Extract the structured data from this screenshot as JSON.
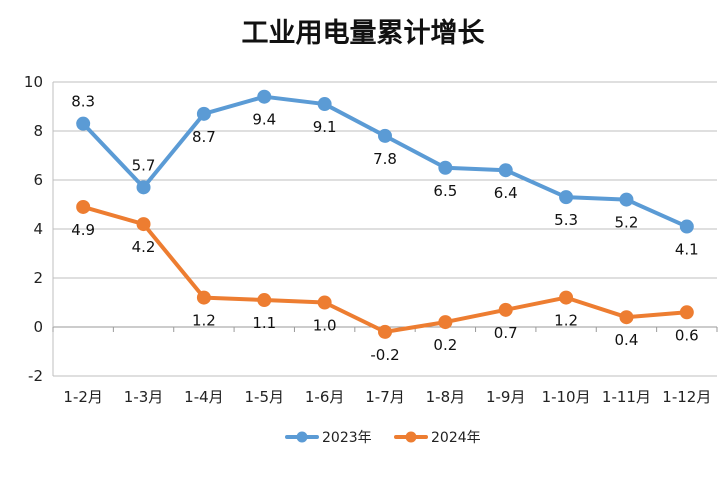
{
  "chart_data": {
    "type": "line",
    "title": "工业用电量累计增长",
    "xlabel": "",
    "ylabel": "",
    "categories": [
      "1-2月",
      "1-3月",
      "1-4月",
      "1-5月",
      "1-6月",
      "1-7月",
      "1-8月",
      "1-9月",
      "1-10月",
      "1-11月",
      "1-12月"
    ],
    "ylim": [
      -2,
      10
    ],
    "yticks": [
      "10",
      "8",
      "6",
      "4",
      "2",
      "0",
      "-2"
    ],
    "grid": true,
    "legend_position": "bottom",
    "series": [
      {
        "name": "2023年",
        "color": "#5B9BD5",
        "values": [
          8.3,
          5.7,
          8.7,
          9.4,
          9.1,
          7.8,
          6.5,
          6.4,
          5.3,
          5.2,
          4.1
        ],
        "labels": [
          "8.3",
          "5.7",
          "8.7",
          "9.4",
          "9.1",
          "7.8",
          "6.5",
          "6.4",
          "5.3",
          "5.2",
          "4.1"
        ],
        "label_side": [
          "above",
          "above",
          "below",
          "below",
          "below",
          "below",
          "below",
          "below",
          "below",
          "below",
          "below"
        ]
      },
      {
        "name": "2024年",
        "color": "#ED7D31",
        "values": [
          4.9,
          4.2,
          1.2,
          1.1,
          1.0,
          -0.2,
          0.2,
          0.7,
          1.2,
          0.4,
          0.6
        ],
        "labels": [
          "4.9",
          "4.2",
          "1.2",
          "1.1",
          "1.0",
          "-0.2",
          "0.2",
          "0.7",
          "1.2",
          "0.4",
          "0.6"
        ],
        "label_side": [
          "below",
          "below",
          "below",
          "below",
          "below",
          "below",
          "below",
          "below",
          "below",
          "below",
          "below"
        ]
      }
    ]
  }
}
